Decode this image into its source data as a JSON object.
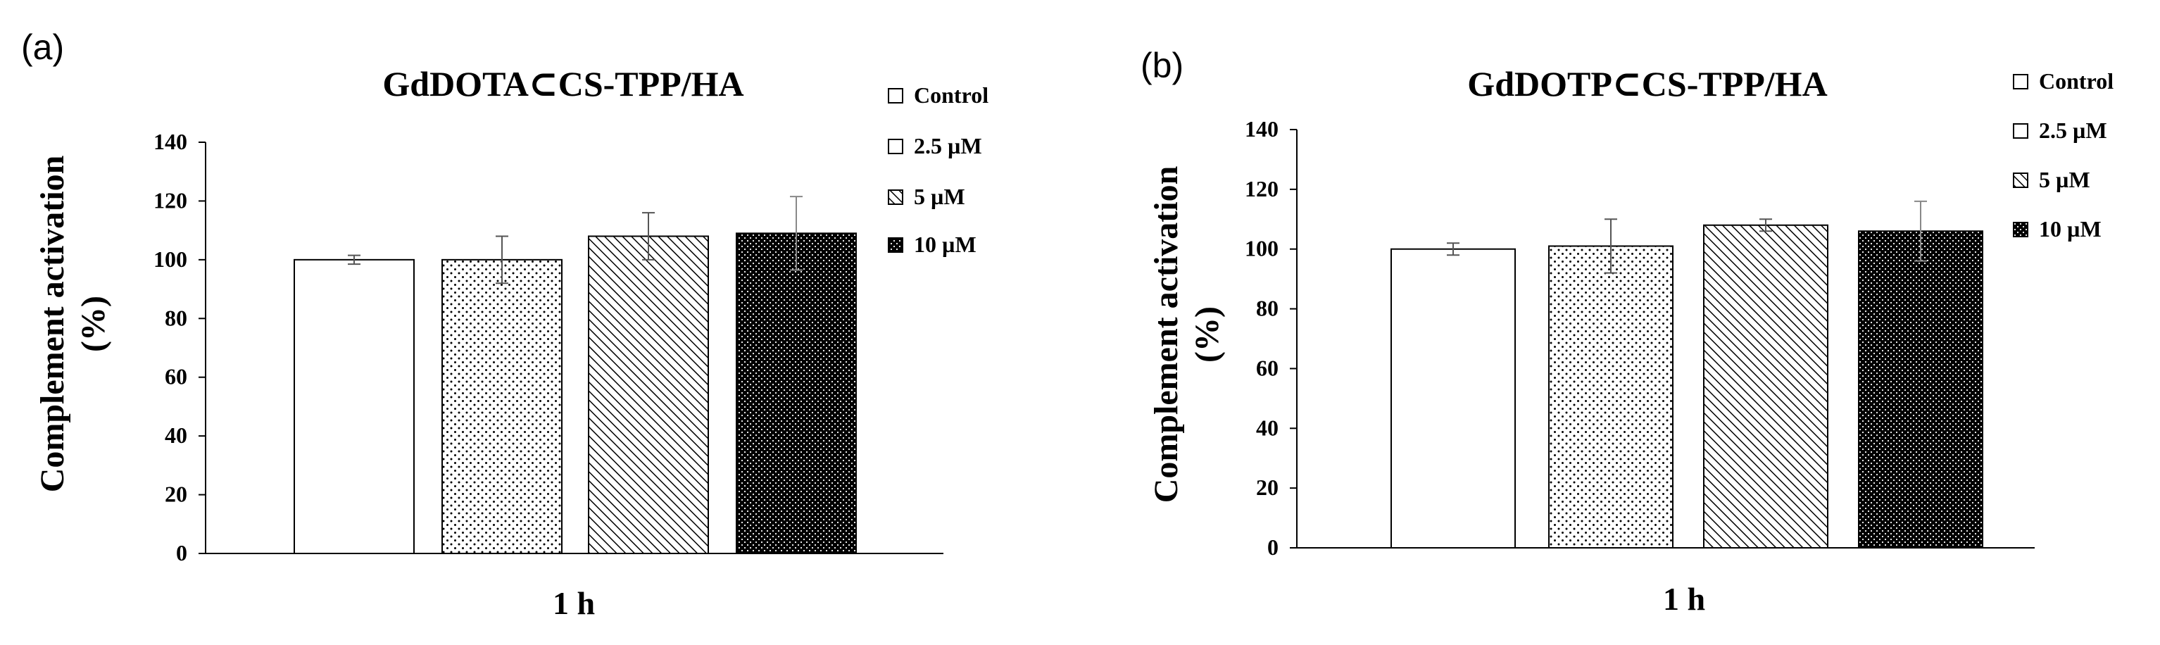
{
  "chart_data": [
    {
      "type": "bar",
      "panel_label": "(a)",
      "title": "GdDOTA⊂CS-TPP/HA",
      "xlabel": "1 h",
      "ylabel_line1": "Complement  activation",
      "ylabel_line2": "(%)",
      "ylim": [
        0,
        140
      ],
      "yticks": [
        "0",
        "20",
        "40",
        "60",
        "80",
        "100",
        "120",
        "140"
      ],
      "series": [
        {
          "name": "Control",
          "value": 100,
          "error": 1.5
        },
        {
          "name": "2.5 µM",
          "value": 100,
          "error": 8
        },
        {
          "name": "5 µM",
          "value": 108,
          "error": 8
        },
        {
          "name": "10 µM",
          "value": 109,
          "error": 12.5
        }
      ]
    },
    {
      "type": "bar",
      "panel_label": "(b)",
      "title": "GdDOTP⊂CS-TPP/HA",
      "xlabel": "1 h",
      "ylabel_line1": "Complement  activation",
      "ylabel_line2": "(%)",
      "ylim": [
        0,
        140
      ],
      "yticks": [
        "0",
        "20",
        "40",
        "60",
        "80",
        "100",
        "120",
        "140"
      ],
      "series": [
        {
          "name": "Control",
          "value": 100,
          "error": 2
        },
        {
          "name": "2.5 µM",
          "value": 101,
          "error": 9
        },
        {
          "name": "5 µM",
          "value": 108,
          "error": 2
        },
        {
          "name": "10 µM",
          "value": 106,
          "error": 10
        }
      ]
    }
  ]
}
